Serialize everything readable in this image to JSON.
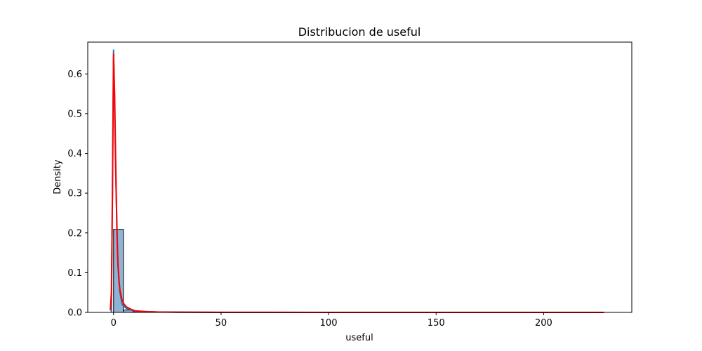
{
  "chart_data": {
    "type": "histogram",
    "title": "Distribucion de useful",
    "xlabel": "useful",
    "ylabel": "Density",
    "xlim": [
      -12,
      241
    ],
    "ylim": [
      0,
      0.68
    ],
    "xticks": [
      0,
      50,
      100,
      150,
      200
    ],
    "xtick_labels": [
      "0",
      "50",
      "100",
      "150",
      "200"
    ],
    "yticks": [
      0.0,
      0.1,
      0.2,
      0.3,
      0.4,
      0.5,
      0.6
    ],
    "ytick_labels": [
      "0.0",
      "0.1",
      "0.2",
      "0.3",
      "0.4",
      "0.5",
      "0.6"
    ],
    "grid": false,
    "histogram": {
      "bin_edges": [
        0,
        4.56,
        9.12,
        13.68,
        18.24,
        22.8,
        27.36,
        31.92,
        36.48,
        41.04,
        45.6,
        50.16,
        54.72,
        59.28,
        63.84,
        68.4,
        72.96,
        77.52,
        82.08,
        86.64,
        91.2,
        95.76,
        100.32,
        104.88,
        109.44,
        114.0,
        118.56,
        123.12,
        127.68,
        132.24,
        136.8,
        141.36,
        145.92,
        150.48,
        155.04,
        159.6,
        164.16,
        168.72,
        173.28,
        177.84,
        182.4,
        186.96,
        191.52,
        196.08,
        200.64,
        205.2,
        209.76,
        214.32,
        218.88,
        223.44,
        228.0
      ],
      "density": [
        0.209,
        0.006,
        0.002,
        0.0008,
        0.0004,
        0.0002,
        0.0001,
        0.0001,
        5e-05,
        5e-05,
        3e-05,
        2e-05,
        2e-05,
        1e-05,
        1e-05,
        1e-05,
        1e-05,
        1e-05,
        1e-05,
        1e-05,
        1e-05,
        1e-05,
        1e-05,
        1e-05,
        1e-05,
        1e-05,
        1e-05,
        1e-05,
        1e-05,
        1e-05,
        1e-05,
        1e-05,
        1e-05,
        1e-05,
        1e-05,
        1e-05,
        1e-05,
        1e-05,
        1e-05,
        1e-05,
        1e-05,
        1e-05,
        1e-05,
        1e-05,
        1e-05,
        1e-05,
        1e-05,
        1e-05,
        1e-05,
        1e-05
      ],
      "fill": "#8fb3d4",
      "edge": "#000000"
    },
    "series": [
      {
        "style": "kde",
        "color": "#1f77b4",
        "x": [
          -1.0,
          0.0,
          1.0,
          2.0,
          3.0,
          4.0,
          6.0,
          10.0,
          20.0,
          50.0,
          100.0,
          228.0
        ],
        "y": [
          0.0,
          0.66,
          0.35,
          0.12,
          0.05,
          0.02,
          0.01,
          0.003,
          0.001,
          0.0,
          0.0,
          0.0
        ]
      },
      {
        "style": "kde",
        "color": "#ff0000",
        "x": [
          -1.5,
          -1.0,
          -0.5,
          0.0,
          0.5,
          1.0,
          1.5,
          2.0,
          2.5,
          3.0,
          4.0,
          5.0,
          6.0,
          8.0,
          10.0,
          15.0,
          20.0,
          30.0,
          50.0,
          100.0,
          150.0,
          228.0
        ],
        "y": [
          0.005,
          0.05,
          0.3,
          0.65,
          0.55,
          0.38,
          0.22,
          0.13,
          0.08,
          0.055,
          0.03,
          0.02,
          0.014,
          0.008,
          0.004,
          0.002,
          0.001,
          0.0005,
          0.0002,
          0.0001,
          0.0001,
          0.0001
        ]
      }
    ]
  }
}
